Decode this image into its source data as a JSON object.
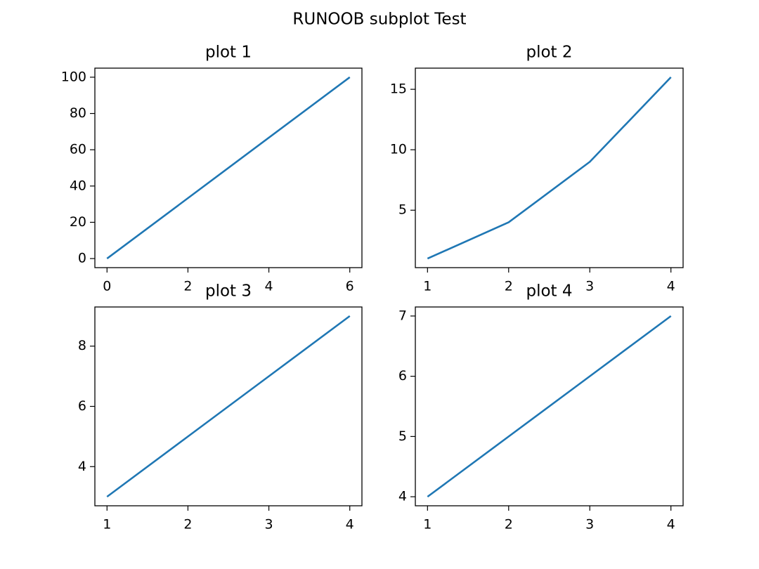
{
  "title": "RUNOOB subplot Test",
  "chart_data": [
    {
      "type": "line",
      "title": "plot 1",
      "x": [
        0,
        6
      ],
      "values": [
        0,
        100
      ],
      "color": "#1f77b4",
      "xlim": [
        -0.3,
        6.3
      ],
      "ylim": [
        -5,
        105
      ],
      "xticks": [
        0,
        2,
        4,
        6
      ],
      "yticks": [
        0,
        20,
        40,
        60,
        80,
        100
      ]
    },
    {
      "type": "line",
      "title": "plot 2",
      "x": [
        1,
        2,
        3,
        4
      ],
      "values": [
        1,
        4,
        9,
        16
      ],
      "color": "#1f77b4",
      "xlim": [
        0.85,
        4.15
      ],
      "ylim": [
        0.25,
        16.75
      ],
      "xticks": [
        1,
        2,
        3,
        4
      ],
      "yticks": [
        5,
        10,
        15
      ]
    },
    {
      "type": "line",
      "title": "plot 3",
      "x": [
        1,
        2,
        3,
        4
      ],
      "values": [
        3,
        5,
        7,
        9
      ],
      "color": "#1f77b4",
      "xlim": [
        0.85,
        4.15
      ],
      "ylim": [
        2.7,
        9.3
      ],
      "xticks": [
        1,
        2,
        3,
        4
      ],
      "yticks": [
        4,
        6,
        8
      ]
    },
    {
      "type": "line",
      "title": "plot 4",
      "x": [
        1,
        2,
        3,
        4
      ],
      "values": [
        4,
        5,
        6,
        7
      ],
      "color": "#1f77b4",
      "xlim": [
        0.85,
        4.15
      ],
      "ylim": [
        3.85,
        7.15
      ],
      "xticks": [
        1,
        2,
        3,
        4
      ],
      "yticks": [
        4,
        5,
        6,
        7
      ]
    }
  ]
}
